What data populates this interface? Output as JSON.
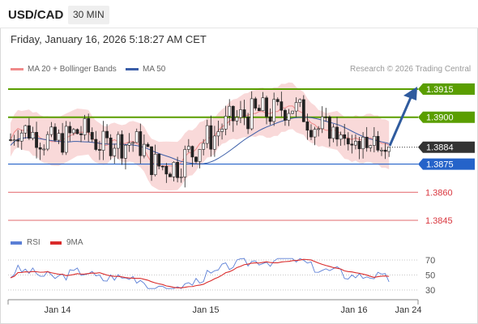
{
  "header": {
    "symbol": "USD/CAD",
    "timeframe": "30 MIN",
    "datetime": "Friday, January 16, 2026 5:18:27 AM CET"
  },
  "legend": {
    "ma20": "MA 20 + Bollinger Bands",
    "ma50": "MA 50",
    "credit": "Research © 2026 Trading Central"
  },
  "rsi_legend": {
    "rsi": "RSI",
    "ma9": "9MA"
  },
  "colors": {
    "resistance": "#5a9e00",
    "current": "#333333",
    "pivot": "#2563c9",
    "support": "#d9363e",
    "bollinger": "#f7c9c9",
    "ma20": "#f08a8a",
    "ma50": "#3b5ea8",
    "up_candle": "#ffffff",
    "down_candle": "#222222",
    "rsi": "#5b7fd6",
    "rsi_ma": "#d92b2b",
    "arrow": "#2f5b9e"
  },
  "chart_data": {
    "type": "candlestick",
    "price_levels": [
      {
        "value": 1.3915,
        "label": "1.3915",
        "kind": "resistance"
      },
      {
        "value": 1.39,
        "label": "1.3900",
        "kind": "resistance"
      },
      {
        "value": 1.3884,
        "label": "1.3884",
        "kind": "current"
      },
      {
        "value": 1.3875,
        "label": "1.3875",
        "kind": "pivot"
      },
      {
        "value": 1.386,
        "label": "1.3860",
        "kind": "support"
      },
      {
        "value": 1.3845,
        "label": "1.3845",
        "kind": "support"
      }
    ],
    "x_ticks": [
      "Jan 14",
      "Jan 15",
      "Jan 16",
      "Jan 24"
    ],
    "rsi_ticks": [
      "70",
      "50",
      "30"
    ],
    "ma20_close": [
      1.3888,
      1.3892,
      1.3894,
      1.3893,
      1.3893,
      1.3893,
      1.3891,
      1.3891,
      1.3889,
      1.3888,
      1.3888,
      1.3887,
      1.3887,
      1.3887,
      1.3888,
      1.3889,
      1.389,
      1.3891,
      1.3892,
      1.3892,
      1.3892,
      1.3892,
      1.3889,
      1.3887,
      1.3886,
      1.3885,
      1.3885,
      1.3887,
      1.3888,
      1.3887,
      1.3886,
      1.3886,
      1.3887,
      1.3887,
      1.3886,
      1.3885,
      1.3883,
      1.3879,
      1.3876,
      1.3875,
      1.3874,
      1.3874,
      1.3874,
      1.3874,
      1.3874,
      1.3874,
      1.3876,
      1.3879,
      1.3881,
      1.3881,
      1.3883,
      1.3886,
      1.3887,
      1.3889,
      1.3889,
      1.389,
      1.3893,
      1.3895,
      1.3896,
      1.3898,
      1.3899,
      1.3899,
      1.39,
      1.3901,
      1.3901,
      1.3902,
      1.3902,
      1.3903,
      1.3903,
      1.3902,
      1.3902,
      1.3903,
      1.3903,
      1.3905,
      1.3905,
      1.3906,
      1.3906,
      1.3904,
      1.3903,
      1.3902,
      1.3899,
      1.3897,
      1.3896,
      1.3894,
      1.3894,
      1.3893,
      1.3893,
      1.3893,
      1.3893,
      1.3891,
      1.3889,
      1.3889,
      1.3888,
      1.3889,
      1.3888,
      1.3888,
      1.3889,
      1.3889,
      1.3888,
      1.3888,
      1.3886,
      1.3886,
      1.3885
    ]
  }
}
